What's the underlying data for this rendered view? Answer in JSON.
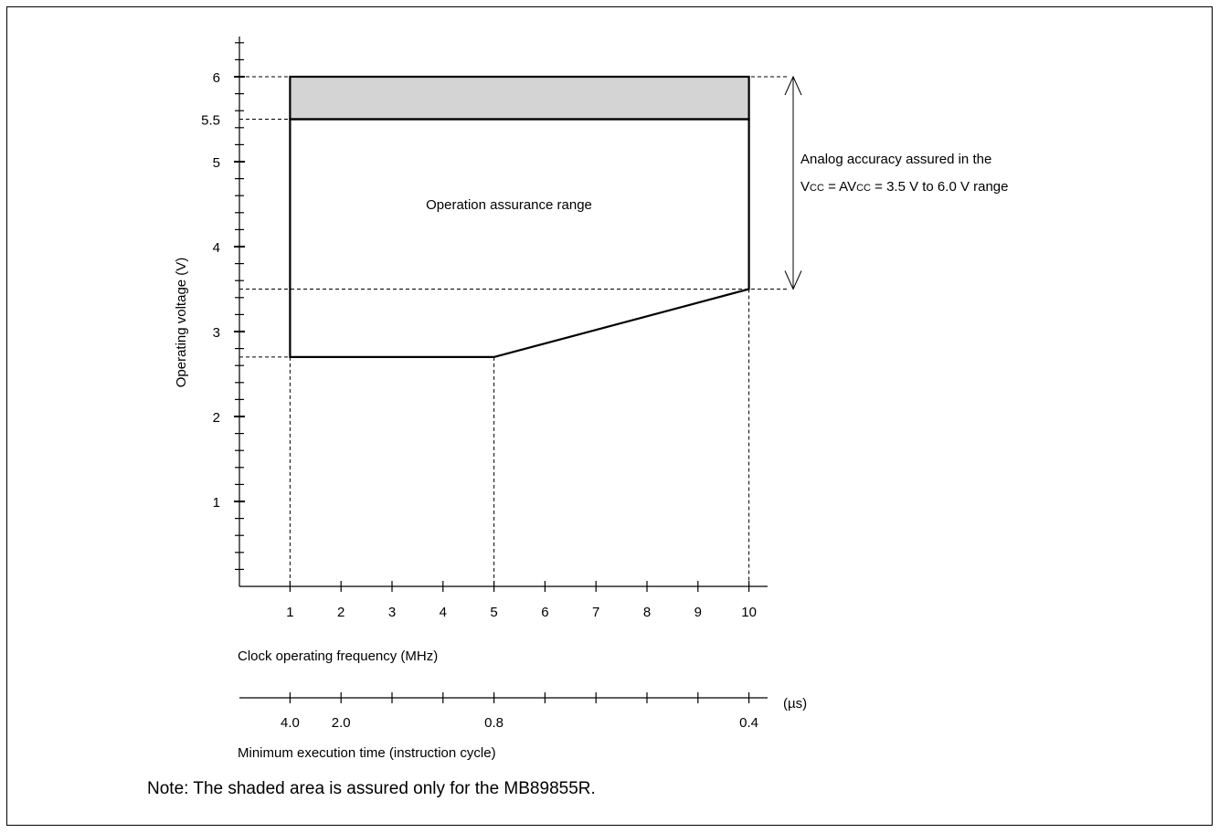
{
  "chart_data": {
    "type": "area",
    "y_axis": {
      "label": "Operating voltage (V)",
      "range": [
        0,
        6.5
      ],
      "major_ticks": [
        1,
        2,
        3,
        4,
        5,
        6
      ],
      "extra_tick_labels": [
        5.5
      ],
      "minor_step": 0.2
    },
    "x_axis": {
      "label": "Clock operating frequency (MHz)",
      "range": [
        0,
        10.4
      ],
      "ticks": [
        1,
        2,
        3,
        4,
        5,
        6,
        7,
        8,
        9,
        10
      ]
    },
    "secondary_x_axis": {
      "label": "Minimum execution time (instruction cycle)",
      "unit": "(µs)",
      "tick_positions": [
        1,
        2,
        3,
        4,
        5,
        6,
        7,
        8,
        9,
        10
      ],
      "tick_labels": [
        {
          "at": 1,
          "text": "4.0"
        },
        {
          "at": 2,
          "text": "2.0"
        },
        {
          "at": 5,
          "text": "0.8"
        },
        {
          "at": 10,
          "text": "0.4"
        }
      ]
    },
    "operation_region": {
      "label": "Operation assurance range",
      "polygon": [
        [
          1,
          2.7
        ],
        [
          5,
          2.7
        ],
        [
          10,
          3.5
        ],
        [
          10,
          5.5
        ],
        [
          1,
          5.5
        ]
      ]
    },
    "shaded_region": {
      "x": [
        1,
        10
      ],
      "y": [
        5.5,
        6.0
      ],
      "fill": "#d4d4d4"
    },
    "reference_lines": {
      "horizontal": [
        6.0,
        5.5,
        3.5,
        2.7
      ],
      "vertical": [
        1,
        5,
        10
      ]
    },
    "analog_annotation": {
      "y_range": [
        3.5,
        6.0
      ],
      "line1": "Analog  accuracy assured in the",
      "line2_parts": [
        "V",
        "CC",
        " = AV",
        "CC",
        " = 3.5 V to 6.0 V range"
      ]
    }
  },
  "note": "Note: The shaded area is assured only for the MB89855R."
}
